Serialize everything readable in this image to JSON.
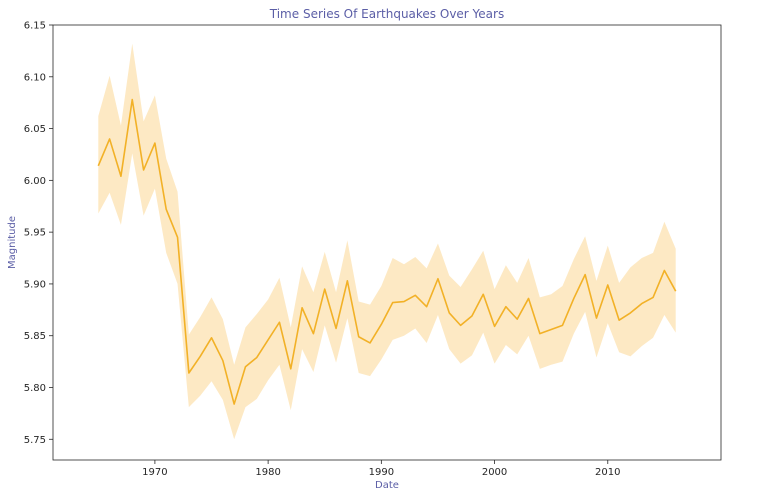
{
  "chart_data": {
    "type": "line",
    "title": "Time Series Of Earthquakes Over Years",
    "xlabel": "Date",
    "ylabel": "Magnitude",
    "xlim": [
      1961,
      2020
    ],
    "ylim": [
      5.73,
      6.15
    ],
    "x_ticks": [
      1970,
      1980,
      1990,
      2000,
      2010
    ],
    "y_ticks": [
      5.75,
      5.8,
      5.85,
      5.9,
      5.95,
      6.0,
      6.05,
      6.1,
      6.15
    ],
    "y_tick_labels": [
      "5.75",
      "5.80",
      "5.85",
      "5.90",
      "5.95",
      "6.00",
      "6.05",
      "6.10",
      "6.15"
    ],
    "grid": false,
    "colors": {
      "line": "#f2b127",
      "band": "#fde9c4",
      "title": "#5b5ea6",
      "axis": "#262626"
    },
    "series": [
      {
        "x": [
          1965,
          1966,
          1967,
          1968,
          1969,
          1970,
          1971,
          1972,
          1973,
          1974,
          1975,
          1976,
          1977,
          1978,
          1979,
          1980,
          1981,
          1982,
          1983,
          1984,
          1985,
          1986,
          1987,
          1988,
          1989,
          1990,
          1991,
          1992,
          1993,
          1994,
          1995,
          1996,
          1997,
          1998,
          1999,
          2000,
          2001,
          2002,
          2003,
          2004,
          2005,
          2006,
          2007,
          2008,
          2009,
          2010,
          2011,
          2012,
          2013,
          2014,
          2015,
          2016
        ],
        "y": [
          6.014,
          6.04,
          6.004,
          6.078,
          6.01,
          6.036,
          5.972,
          5.945,
          5.814,
          5.83,
          5.848,
          5.826,
          5.784,
          5.82,
          5.829,
          5.846,
          5.863,
          5.818,
          5.877,
          5.852,
          5.895,
          5.857,
          5.903,
          5.849,
          5.843,
          5.861,
          5.882,
          5.883,
          5.889,
          5.878,
          5.905,
          5.872,
          5.86,
          5.869,
          5.89,
          5.859,
          5.878,
          5.866,
          5.886,
          5.852,
          5.856,
          5.86,
          5.886,
          5.909,
          5.867,
          5.899,
          5.865,
          5.872,
          5.881,
          5.887,
          5.913,
          5.893
        ],
        "ci_lower": [
          5.968,
          5.988,
          5.957,
          6.026,
          5.966,
          5.992,
          5.93,
          5.9,
          5.781,
          5.792,
          5.806,
          5.788,
          5.75,
          5.781,
          5.789,
          5.807,
          5.822,
          5.778,
          5.837,
          5.815,
          5.86,
          5.824,
          5.867,
          5.814,
          5.811,
          5.827,
          5.846,
          5.85,
          5.857,
          5.843,
          5.87,
          5.837,
          5.823,
          5.831,
          5.853,
          5.823,
          5.841,
          5.832,
          5.85,
          5.818,
          5.822,
          5.825,
          5.852,
          5.873,
          5.829,
          5.862,
          5.834,
          5.83,
          5.84,
          5.848,
          5.87,
          5.853
        ],
        "ci_upper": [
          6.062,
          6.101,
          6.053,
          6.132,
          6.057,
          6.082,
          6.021,
          5.989,
          5.851,
          5.868,
          5.887,
          5.866,
          5.822,
          5.858,
          5.871,
          5.885,
          5.906,
          5.858,
          5.917,
          5.892,
          5.931,
          5.892,
          5.942,
          5.883,
          5.88,
          5.898,
          5.925,
          5.919,
          5.926,
          5.915,
          5.939,
          5.908,
          5.897,
          5.914,
          5.932,
          5.895,
          5.918,
          5.901,
          5.925,
          5.887,
          5.89,
          5.898,
          5.924,
          5.946,
          5.903,
          5.937,
          5.901,
          5.916,
          5.925,
          5.93,
          5.96,
          5.934
        ]
      }
    ]
  }
}
